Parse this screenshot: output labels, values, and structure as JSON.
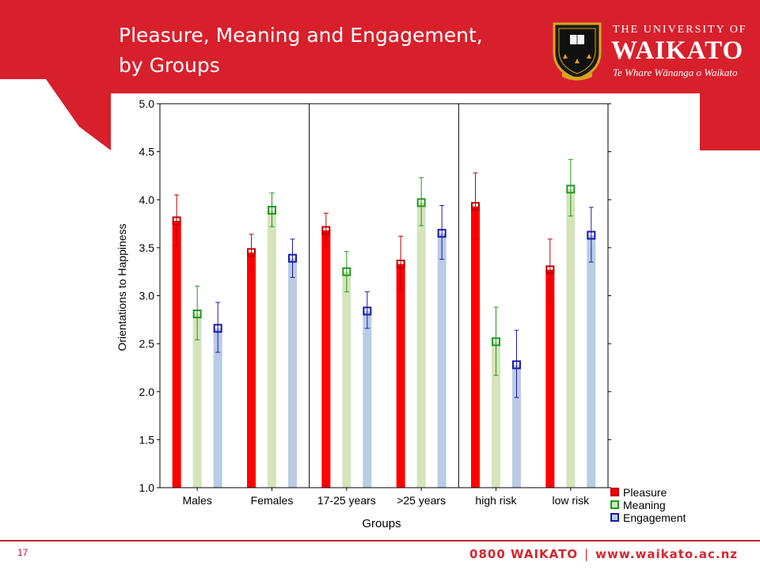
{
  "slide": {
    "title_line1": "Pleasure, Meaning and Engagement,",
    "title_line2": "by Groups",
    "page_number": "17",
    "footer_phone": "0800 WAIKATO",
    "footer_separator": "|",
    "footer_url": "www.waikato.ac.nz"
  },
  "branding": {
    "university_small": "THE UNIVERSITY OF",
    "university_big": "WAIKATO",
    "tagline": "Te Whare Wānanga o Waikato",
    "brand_red": "#d7202c"
  },
  "chart_data": {
    "type": "bar",
    "xlabel": "Groups",
    "ylabel": "Orientations to Happiness",
    "ylim": [
      1.0,
      5.0
    ],
    "yticks": [
      "1.0",
      "1.5",
      "2.0",
      "2.5",
      "3.0",
      "3.5",
      "4.0",
      "4.5",
      "5.0"
    ],
    "categories": [
      "Males",
      "Females",
      "17-25 years",
      ">25 years",
      "high risk",
      "low risk"
    ],
    "separators_after": [
      1,
      3
    ],
    "legend_position": "bottom-right",
    "series": [
      {
        "name": "Pleasure",
        "bar_color": "#ff0000",
        "marker_color": "#c00000",
        "values": [
          3.78,
          3.45,
          3.68,
          3.33,
          3.93,
          3.27
        ],
        "err_low": [
          3.52,
          3.27,
          3.51,
          3.06,
          3.59,
          2.96
        ],
        "err_high": [
          4.05,
          3.64,
          3.86,
          3.62,
          4.28,
          3.59
        ]
      },
      {
        "name": "Meaning",
        "bar_color": "#d6e4bc",
        "marker_color": "#1e9a1e",
        "values": [
          2.81,
          3.89,
          3.25,
          3.97,
          2.52,
          4.11
        ],
        "err_low": [
          2.54,
          3.72,
          3.04,
          3.73,
          2.17,
          3.83
        ],
        "err_high": [
          3.1,
          4.07,
          3.46,
          4.23,
          2.88,
          4.42
        ]
      },
      {
        "name": "Engagement",
        "bar_color": "#b8cce4",
        "marker_color": "#1a1aa8",
        "values": [
          2.66,
          3.39,
          2.84,
          3.65,
          2.28,
          3.63
        ],
        "err_low": [
          2.41,
          3.19,
          2.66,
          3.38,
          1.94,
          3.35
        ],
        "err_high": [
          2.93,
          3.59,
          3.04,
          3.94,
          2.64,
          3.92
        ]
      }
    ]
  }
}
